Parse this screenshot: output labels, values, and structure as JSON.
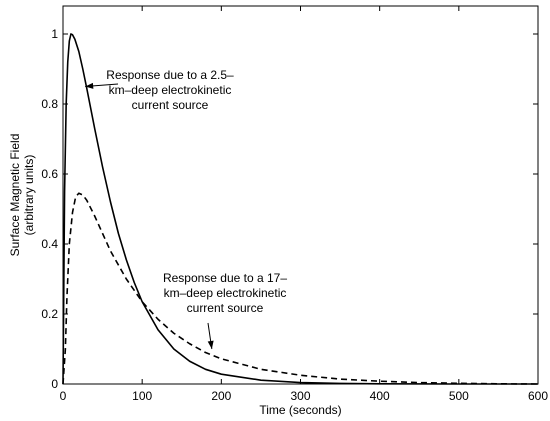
{
  "chart_data": {
    "type": "line",
    "title": "",
    "xlabel": "Time (seconds)",
    "ylabel_lines": [
      "Surface Magnetic Field",
      "(arbitrary units)"
    ],
    "xlim": [
      0,
      600
    ],
    "ylim": [
      0,
      1.08
    ],
    "xticks": [
      0,
      100,
      200,
      300,
      400,
      500,
      600
    ],
    "yticks": [
      0,
      0.2,
      0.4,
      0.6,
      0.8,
      1
    ],
    "grid": false,
    "legend": "none",
    "series": [
      {
        "style": "solid",
        "color": "#000000",
        "points": [
          [
            0,
            0
          ],
          [
            2,
            0.55
          ],
          [
            4,
            0.8
          ],
          [
            6,
            0.92
          ],
          [
            8,
            0.98
          ],
          [
            10,
            1.0
          ],
          [
            12,
            0.998
          ],
          [
            15,
            0.985
          ],
          [
            20,
            0.95
          ],
          [
            25,
            0.9
          ],
          [
            30,
            0.845
          ],
          [
            40,
            0.73
          ],
          [
            50,
            0.62
          ],
          [
            60,
            0.52
          ],
          [
            70,
            0.43
          ],
          [
            80,
            0.355
          ],
          [
            90,
            0.29
          ],
          [
            100,
            0.235
          ],
          [
            120,
            0.155
          ],
          [
            140,
            0.1
          ],
          [
            160,
            0.065
          ],
          [
            180,
            0.042
          ],
          [
            200,
            0.028
          ],
          [
            250,
            0.011
          ],
          [
            300,
            0.004
          ],
          [
            350,
            0.0015
          ],
          [
            400,
            0.0005
          ],
          [
            500,
            0.0
          ],
          [
            600,
            0.0
          ]
        ]
      },
      {
        "style": "dashed",
        "color": "#000000",
        "points": [
          [
            0,
            0
          ],
          [
            3,
            0.1
          ],
          [
            5,
            0.25
          ],
          [
            8,
            0.4
          ],
          [
            12,
            0.49
          ],
          [
            16,
            0.535
          ],
          [
            20,
            0.545
          ],
          [
            25,
            0.54
          ],
          [
            30,
            0.525
          ],
          [
            40,
            0.48
          ],
          [
            50,
            0.43
          ],
          [
            60,
            0.38
          ],
          [
            80,
            0.3
          ],
          [
            100,
            0.235
          ],
          [
            120,
            0.185
          ],
          [
            140,
            0.145
          ],
          [
            160,
            0.115
          ],
          [
            180,
            0.09
          ],
          [
            200,
            0.072
          ],
          [
            250,
            0.042
          ],
          [
            300,
            0.025
          ],
          [
            350,
            0.014
          ],
          [
            400,
            0.008
          ],
          [
            450,
            0.004
          ],
          [
            500,
            0.002
          ],
          [
            550,
            0.0005
          ],
          [
            600,
            0.0
          ]
        ]
      }
    ],
    "annotations": [
      {
        "lines": [
          "Response due to a 2.5–",
          "km–deep electrokinetic",
          "current source"
        ],
        "arrow_to": [
          28,
          0.85
        ]
      },
      {
        "lines": [
          "Response due to a 17–",
          "km–deep electrokinetic",
          "current source"
        ],
        "arrow_to": [
          188,
          0.1
        ]
      }
    ]
  }
}
